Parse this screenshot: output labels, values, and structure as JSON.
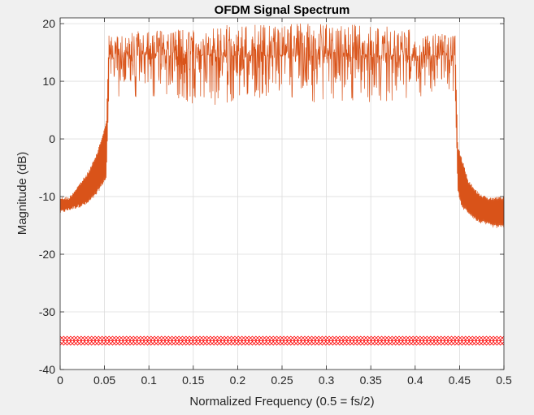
{
  "chart_data": {
    "type": "line",
    "title": "OFDM Signal Spectrum",
    "xlabel": "Normalized Frequency (0.5 = fs/2)",
    "ylabel": "Magnitude (dB)",
    "xlim": [
      0,
      0.5
    ],
    "ylim": [
      -40,
      21
    ],
    "xticks": [
      0,
      0.05,
      0.1,
      0.15,
      0.2,
      0.25,
      0.3,
      0.35,
      0.4,
      0.45,
      0.5
    ],
    "xtick_labels": [
      "0",
      "0.05",
      "0.1",
      "0.15",
      "0.2",
      "0.25",
      "0.3",
      "0.35",
      "0.4",
      "0.45",
      "0.5"
    ],
    "yticks": [
      -40,
      -30,
      -20,
      -10,
      0,
      10,
      20
    ],
    "ytick_labels": [
      "-40",
      "-30",
      "-20",
      "-10",
      "0",
      "10",
      "20"
    ],
    "grid": true,
    "legend": "none",
    "series": [
      {
        "style": "line",
        "color": "#d95319",
        "envelope": {
          "x": [
            0,
            0.01,
            0.02,
            0.03,
            0.04,
            0.048,
            0.052,
            0.055,
            0.06,
            0.1,
            0.15,
            0.2,
            0.25,
            0.3,
            0.35,
            0.4,
            0.44,
            0.445,
            0.448,
            0.452,
            0.46,
            0.47,
            0.48,
            0.49,
            0.5
          ],
          "upper": [
            -10,
            -10,
            -8,
            -6,
            -3,
            1,
            3,
            18,
            18,
            19,
            19,
            20,
            20,
            20,
            20,
            19,
            18,
            18,
            -1,
            -3,
            -7,
            -9,
            -10,
            -10,
            -10
          ],
          "lower": [
            -13,
            -12.5,
            -12,
            -11.5,
            -10,
            -8,
            -7,
            8,
            7,
            7,
            5,
            6,
            7,
            6,
            6,
            7,
            8,
            8,
            -9,
            -12,
            -13,
            -14.5,
            -15,
            -15.5,
            -15.5
          ]
        }
      },
      {
        "style": "markers",
        "marker": "diamond",
        "color": "#ff0000",
        "x_range": [
          0,
          0.5
        ],
        "y": -35,
        "marker_count": 128
      }
    ]
  }
}
